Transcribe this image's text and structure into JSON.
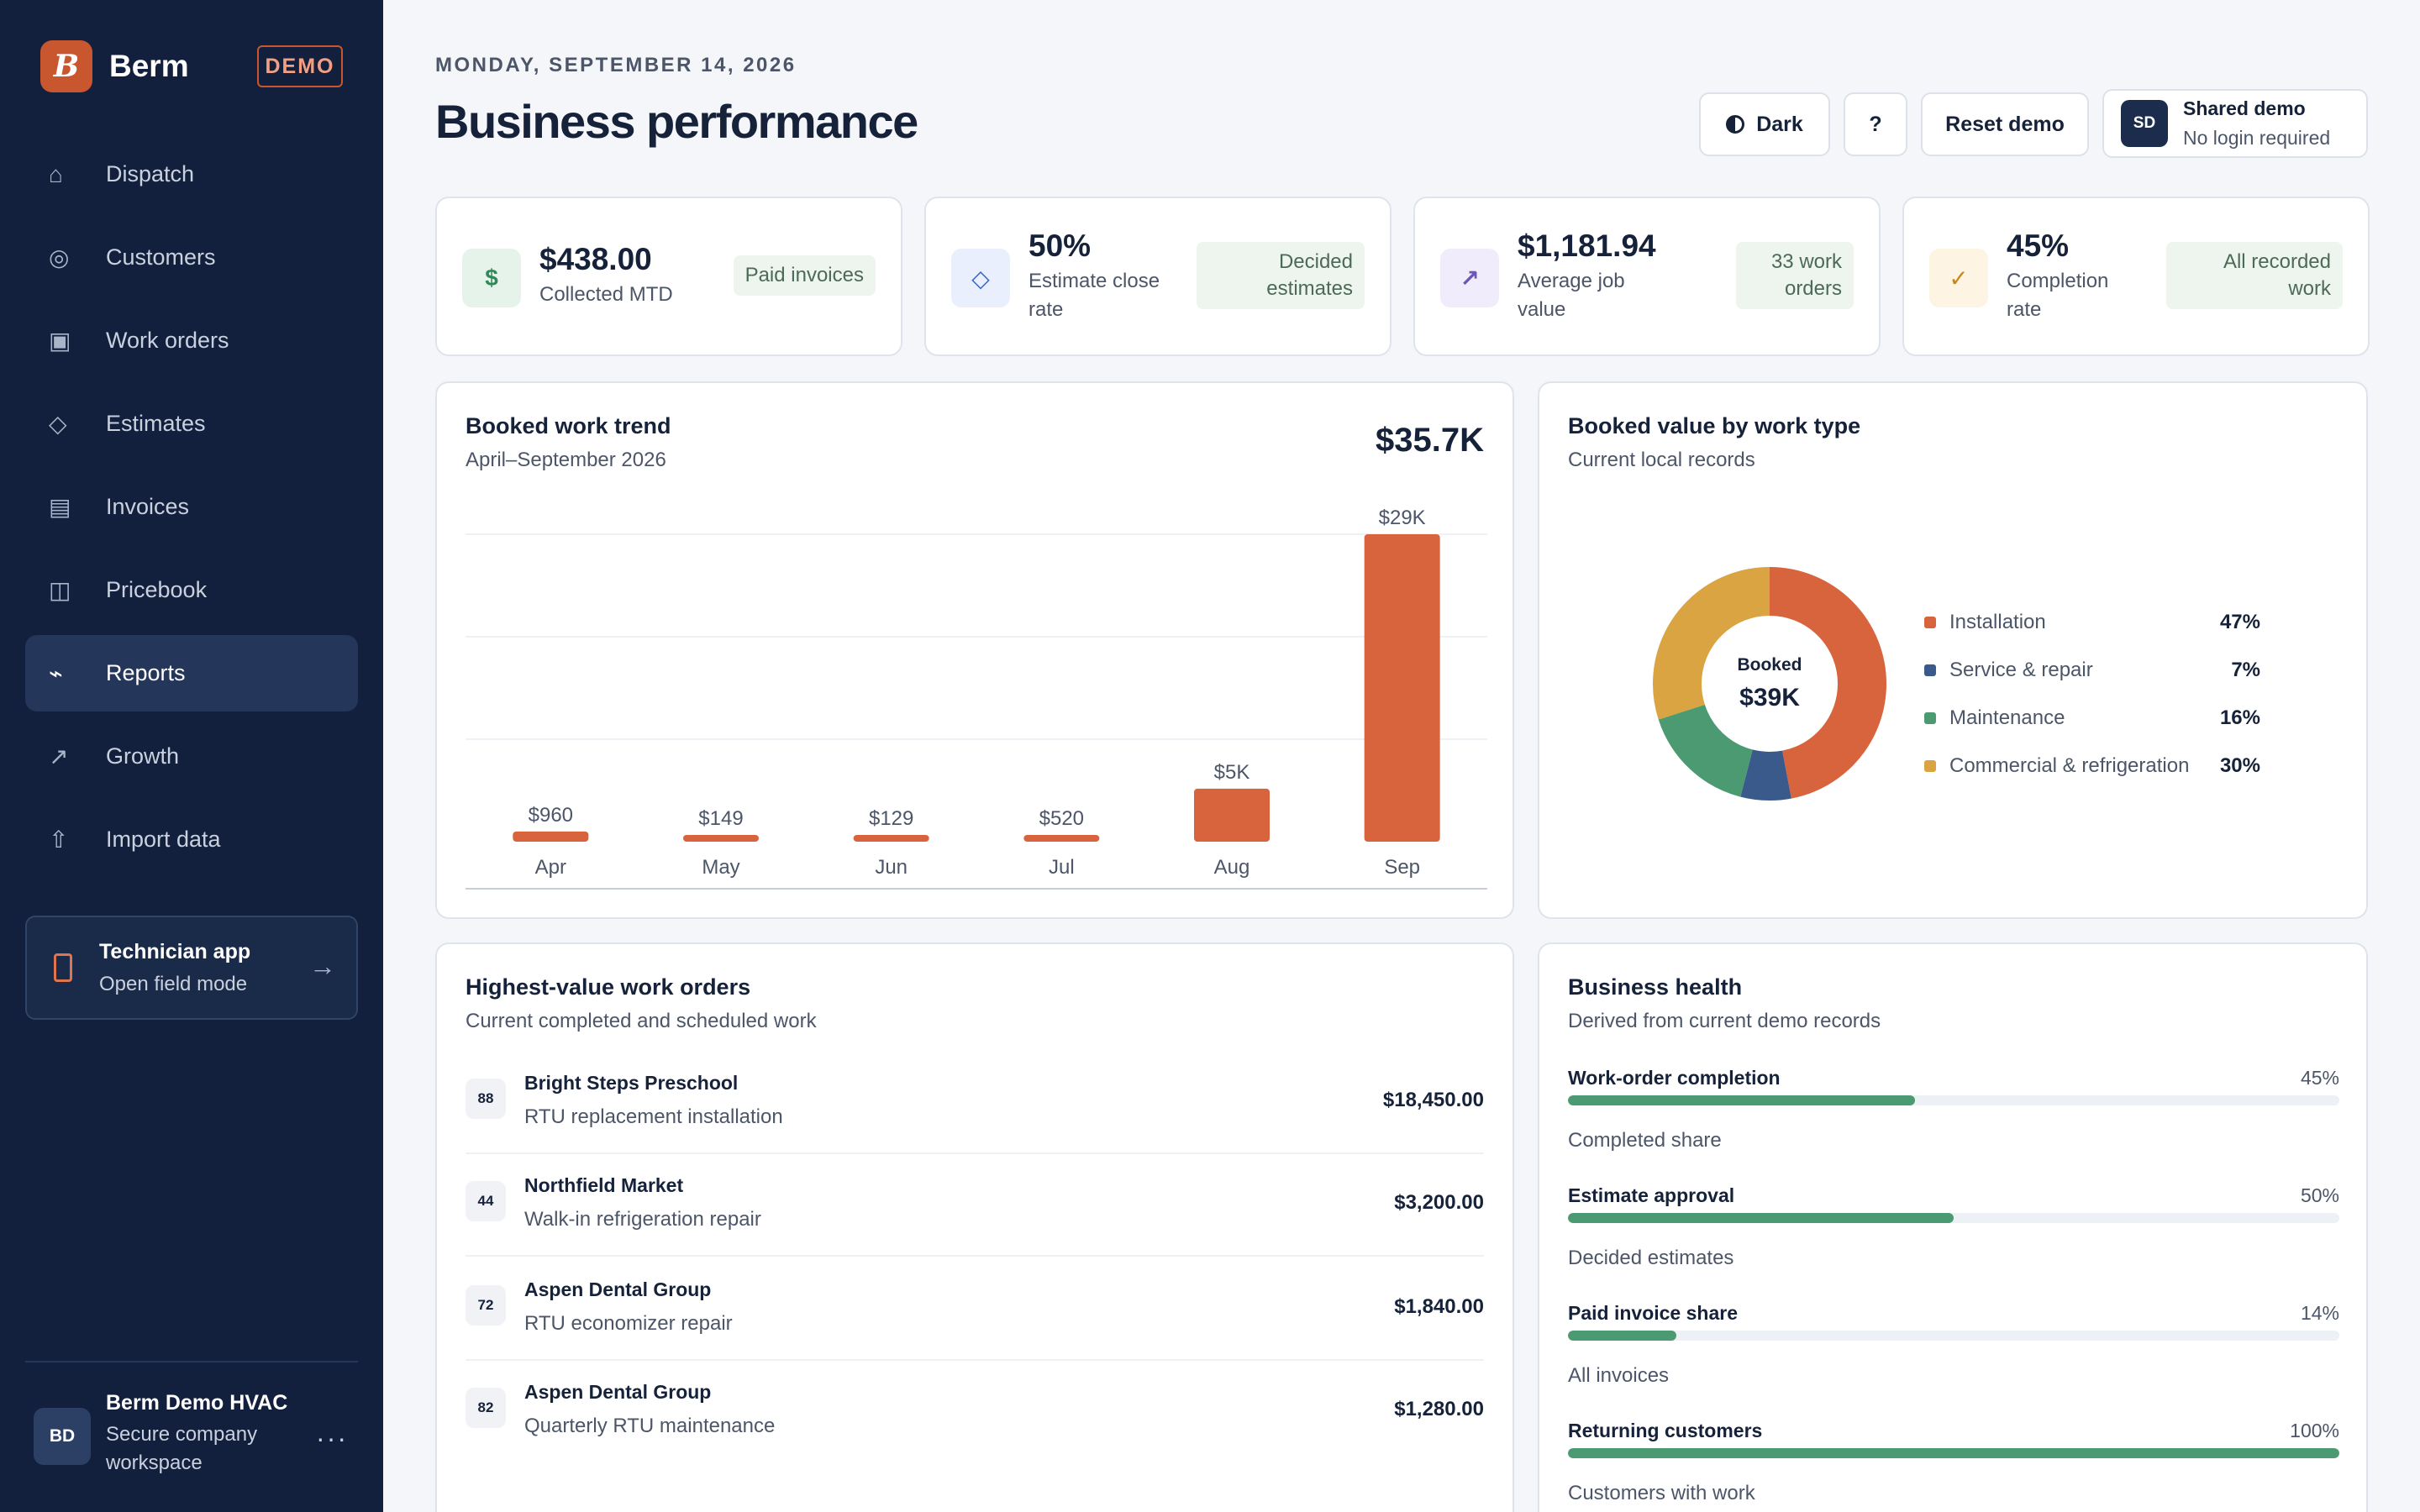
{
  "brand": {
    "logo_letter": "B",
    "name": "Berm",
    "badge": "DEMO"
  },
  "nav": [
    {
      "label": "Dispatch",
      "icon": "home-icon",
      "glyph": "⌂",
      "active": false
    },
    {
      "label": "Customers",
      "icon": "customers-icon",
      "glyph": "◎",
      "active": false
    },
    {
      "label": "Work orders",
      "icon": "work-orders-icon",
      "glyph": "▣",
      "active": false
    },
    {
      "label": "Estimates",
      "icon": "estimates-icon",
      "glyph": "◇",
      "active": false
    },
    {
      "label": "Invoices",
      "icon": "invoices-icon",
      "glyph": "▤",
      "active": false
    },
    {
      "label": "Pricebook",
      "icon": "pricebook-icon",
      "glyph": "◫",
      "active": false
    },
    {
      "label": "Reports",
      "icon": "reports-icon",
      "glyph": "⌁",
      "active": true
    },
    {
      "label": "Growth",
      "icon": "growth-icon",
      "glyph": "↗",
      "active": false
    },
    {
      "label": "Import data",
      "icon": "import-icon",
      "glyph": "⇧",
      "active": false
    }
  ],
  "technician": {
    "title": "Technician app",
    "subtitle": "Open field mode",
    "arrow": "→"
  },
  "user": {
    "initials": "BD",
    "name": "Berm Demo HVAC",
    "subtitle": "Secure company workspace",
    "more": "···"
  },
  "header": {
    "date": "MONDAY, SEPTEMBER 14, 2026",
    "title": "Business performance",
    "dark_label": "Dark",
    "help_label": "?",
    "reset_label": "Reset demo",
    "shared": {
      "initials": "SD",
      "title": "Shared demo",
      "subtitle": "No login required"
    }
  },
  "kpis": [
    {
      "value": "$438.00",
      "label": "Collected MTD",
      "tag": "Paid invoices",
      "glyph": "$",
      "icon": "dollar-icon",
      "icon_bg": "#e6f3ea",
      "icon_color": "#2f8a57"
    },
    {
      "value": "50%",
      "label": "Estimate close rate",
      "tag": "Decided estimates",
      "glyph": "◇",
      "icon": "diamond-icon",
      "icon_bg": "#e9effd",
      "icon_color": "#3a64c9"
    },
    {
      "value": "$1,181.94",
      "label": "Average job value",
      "tag": "33 work orders",
      "glyph": "↗",
      "icon": "trend-up-icon",
      "icon_bg": "#f1ecfb",
      "icon_color": "#6e55b8"
    },
    {
      "value": "45%",
      "label": "Completion rate",
      "tag": "All recorded work",
      "glyph": "✓",
      "icon": "check-icon",
      "icon_bg": "#fdf4e3",
      "icon_color": "#c58a1c"
    }
  ],
  "trend": {
    "title": "Booked work trend",
    "subtitle": "April–September 2026",
    "total": "$35.7K"
  },
  "chart_data": {
    "type": "bar",
    "categories": [
      "Apr",
      "May",
      "Jun",
      "Jul",
      "Aug",
      "Sep"
    ],
    "values": [
      960,
      149,
      129,
      520,
      5000,
      29000
    ],
    "value_labels": [
      "$960",
      "$149",
      "$129",
      "$520",
      "$5K",
      "$29K"
    ],
    "title": "Booked work trend",
    "ylim": [
      0,
      29000
    ],
    "grid": true,
    "bar_color": "#d8643d"
  },
  "work_type": {
    "title": "Booked value by work type",
    "subtitle": "Current local records",
    "center_label": "Booked",
    "center_value": "$39K",
    "slices": [
      {
        "name": "Installation",
        "pct": 47,
        "label": "47%",
        "color": "#d8643d"
      },
      {
        "name": "Service & repair",
        "pct": 7,
        "label": "7%",
        "color": "#3a5a8c"
      },
      {
        "name": "Maintenance",
        "pct": 16,
        "label": "16%",
        "color": "#4b9a72"
      },
      {
        "name": "Commercial & refrigeration",
        "pct": 30,
        "label": "30%",
        "color": "#d9a441"
      }
    ]
  },
  "work_orders": {
    "title": "Highest-value work orders",
    "subtitle": "Current completed and scheduled work",
    "rows": [
      {
        "num": "88",
        "name": "Bright Steps Preschool",
        "desc": "RTU replacement installation",
        "amount": "$18,450.00"
      },
      {
        "num": "44",
        "name": "Northfield Market",
        "desc": "Walk-in refrigeration repair",
        "amount": "$3,200.00"
      },
      {
        "num": "72",
        "name": "Aspen Dental Group",
        "desc": "RTU economizer repair",
        "amount": "$1,840.00"
      },
      {
        "num": "82",
        "name": "Aspen Dental Group",
        "desc": "Quarterly RTU maintenance",
        "amount": "$1,280.00"
      }
    ]
  },
  "health": {
    "title": "Business health",
    "subtitle": "Derived from current demo records",
    "rows": [
      {
        "label": "Work-order completion",
        "pct_label": "45%",
        "fraction": 0.45,
        "sub": "Completed share"
      },
      {
        "label": "Estimate approval",
        "pct_label": "50%",
        "fraction": 0.5,
        "sub": "Decided estimates"
      },
      {
        "label": "Paid invoice share",
        "pct_label": "14%",
        "fraction": 0.14,
        "sub": "All invoices"
      },
      {
        "label": "Returning customers",
        "pct_label": "100%",
        "fraction": 1.0,
        "sub": "Customers with work"
      }
    ]
  }
}
